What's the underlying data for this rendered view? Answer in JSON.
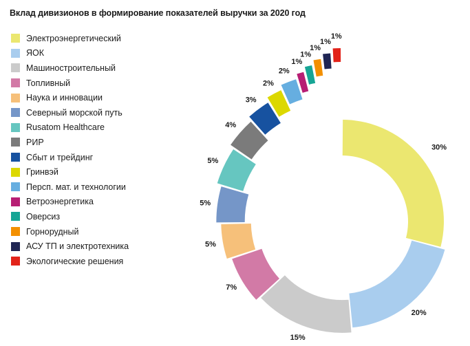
{
  "chart_data": {
    "type": "pie",
    "title": "Вклад дивизионов в формирование показателей выручки за 2020 год",
    "slices": [
      {
        "label": "Электроэнергетический",
        "value": 30,
        "value_label": "30%",
        "color": "#ebe770"
      },
      {
        "label": "ЯОК",
        "value": 20,
        "value_label": "20%",
        "color": "#a9cdee"
      },
      {
        "label": "Машиностроительный",
        "value": 15,
        "value_label": "15%",
        "color": "#cbcbcb"
      },
      {
        "label": "Топливный",
        "value": 7,
        "value_label": "7%",
        "color": "#d27aa6"
      },
      {
        "label": "Наука и инновации",
        "value": 5,
        "value_label": "5%",
        "color": "#f6c07a"
      },
      {
        "label": "Северный морской путь",
        "value": 5,
        "value_label": "5%",
        "color": "#7596c8"
      },
      {
        "label": "Rusatom Healthcare",
        "value": 5,
        "value_label": "5%",
        "color": "#66c6c0"
      },
      {
        "label": "РИР",
        "value": 4,
        "value_label": "4%",
        "color": "#7b7b7b"
      },
      {
        "label": "Сбыт и трейдинг",
        "value": 3,
        "value_label": "3%",
        "color": "#1752a0"
      },
      {
        "label": "Гринвэй",
        "value": 2,
        "value_label": "2%",
        "color": "#dcd800"
      },
      {
        "label": "Персп. мат. и технологии",
        "value": 2,
        "value_label": "2%",
        "color": "#66aee0"
      },
      {
        "label": "Ветроэнергетика",
        "value": 1,
        "value_label": "1%",
        "color": "#b71e74"
      },
      {
        "label": "Оверсиз",
        "value": 1,
        "value_label": "1%",
        "color": "#16a595"
      },
      {
        "label": "Горнорудный",
        "value": 1,
        "value_label": "1%",
        "color": "#f39000"
      },
      {
        "label": "АСУ ТП и электротехника",
        "value": 1,
        "value_label": "1%",
        "color": "#1f2553"
      },
      {
        "label": "Экологические решения",
        "value": 1,
        "value_label": "1%",
        "color": "#e2231a"
      }
    ]
  }
}
